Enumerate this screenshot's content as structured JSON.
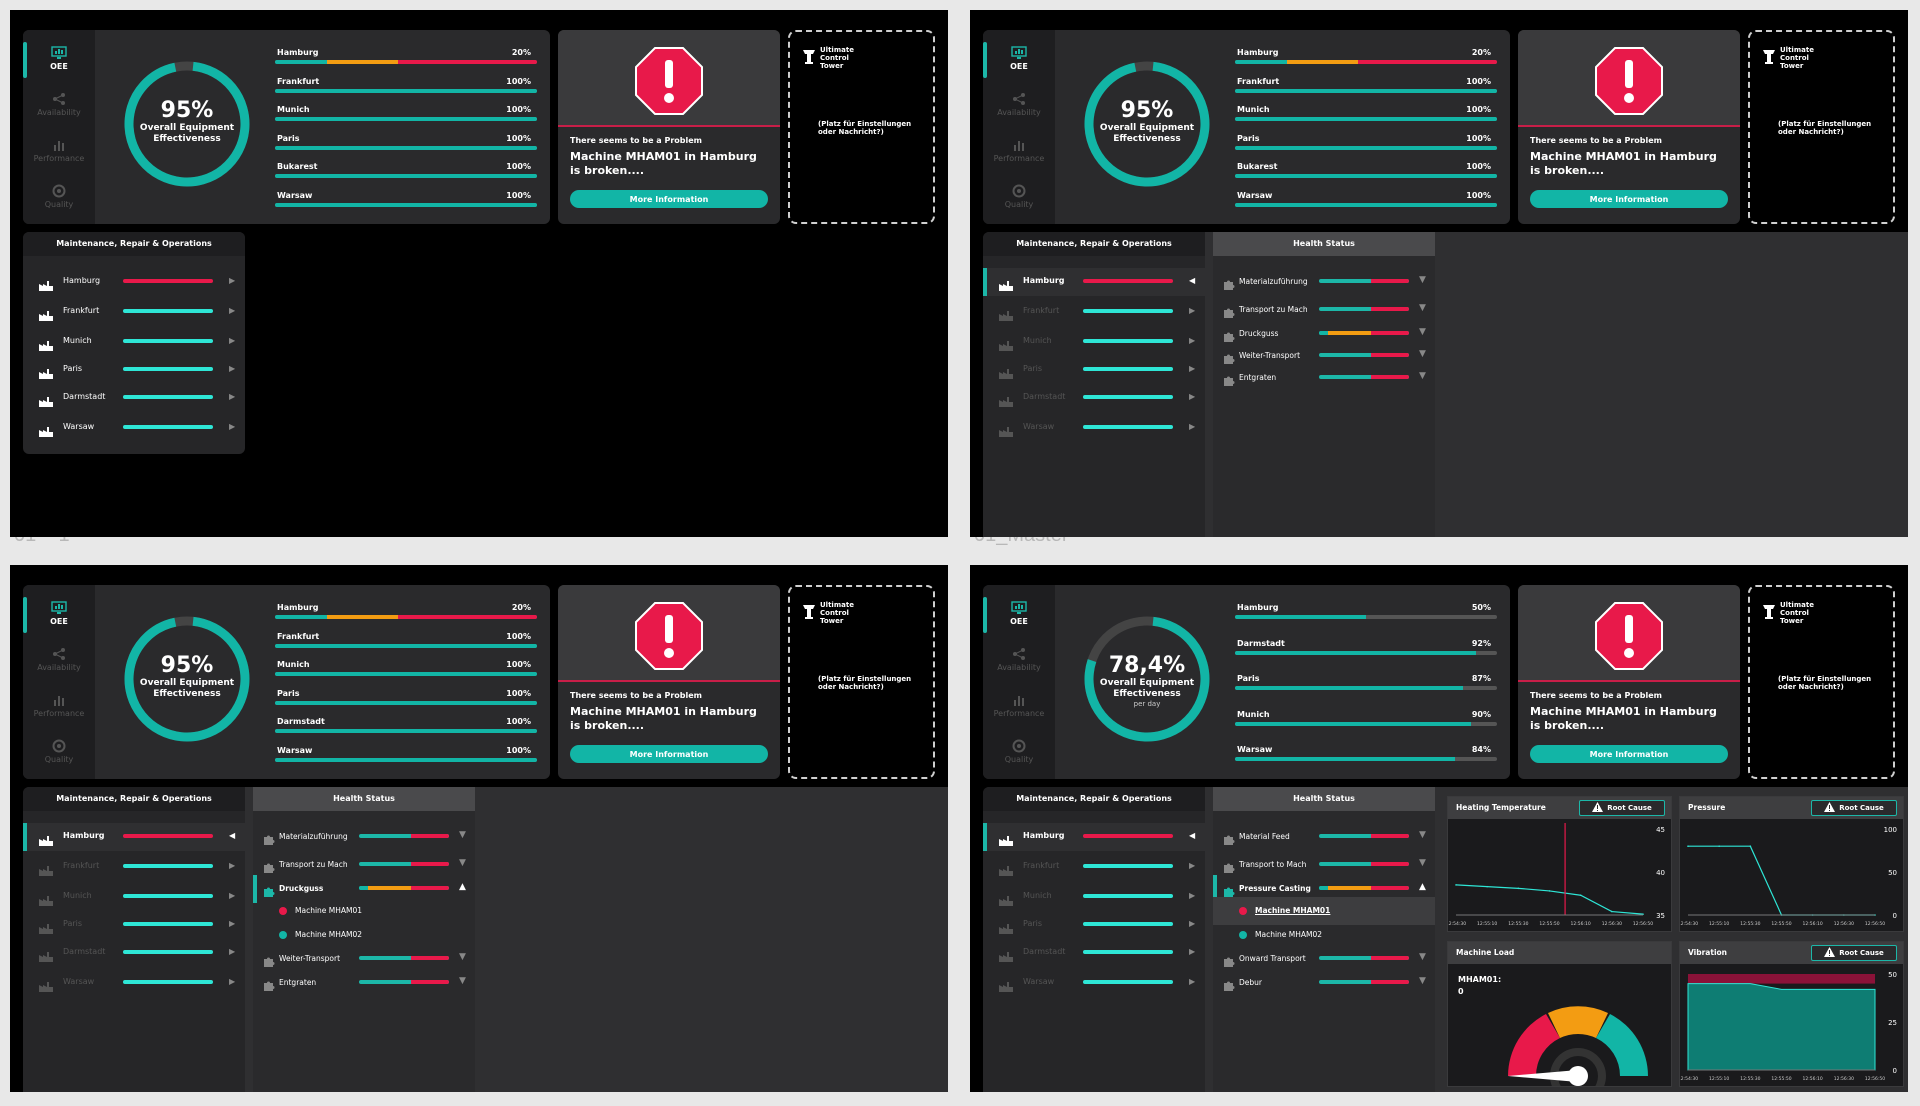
{
  "frames": [
    {
      "label": "01 – 1"
    },
    {
      "label": "01_Master"
    },
    {
      "label": ""
    },
    {
      "label": ""
    }
  ],
  "nav": {
    "items": [
      {
        "label": "OEE",
        "icon": "oee-monitor-icon"
      },
      {
        "label": "Availability",
        "icon": "network-icon"
      },
      {
        "label": "Performance",
        "icon": "bar-chart-icon"
      },
      {
        "label": "Quality",
        "icon": "quality-gauge-icon"
      }
    ]
  },
  "oee_a": {
    "percent": "95%",
    "label_line1": "Overall Equipment",
    "label_line2": "Effectiveness",
    "fraction": 0.95,
    "bars": [
      {
        "name": "Hamburg",
        "value": "20%",
        "segments": [
          {
            "from": 0,
            "to": 0.2,
            "color": "#12b5a6"
          },
          {
            "from": 0.2,
            "to": 0.47,
            "color": "#f39c12"
          },
          {
            "from": 0.47,
            "to": 1,
            "color": "#e8194a"
          }
        ]
      },
      {
        "name": "Frankfurt",
        "value": "100%",
        "segments": [
          {
            "from": 0,
            "to": 1,
            "color": "#12b5a6"
          }
        ]
      },
      {
        "name": "Munich",
        "value": "100%",
        "segments": [
          {
            "from": 0,
            "to": 1,
            "color": "#12b5a6"
          }
        ]
      },
      {
        "name": "Paris",
        "value": "100%",
        "segments": [
          {
            "from": 0,
            "to": 1,
            "color": "#12b5a6"
          }
        ]
      },
      {
        "name": "Bukarest",
        "value": "100%",
        "segments": [
          {
            "from": 0,
            "to": 1,
            "color": "#12b5a6"
          }
        ]
      },
      {
        "name": "Warsaw",
        "value": "100%",
        "segments": [
          {
            "from": 0,
            "to": 1,
            "color": "#12b5a6"
          }
        ]
      }
    ]
  },
  "oee_c": {
    "percent": "95%",
    "label_line1": "Overall Equipment",
    "label_line2": "Effectiveness",
    "fraction": 0.95,
    "bars": [
      {
        "name": "Hamburg",
        "value": "20%",
        "segments": [
          {
            "from": 0,
            "to": 0.2,
            "color": "#12b5a6"
          },
          {
            "from": 0.2,
            "to": 0.47,
            "color": "#f39c12"
          },
          {
            "from": 0.47,
            "to": 1,
            "color": "#e8194a"
          }
        ]
      },
      {
        "name": "Frankfurt",
        "value": "100%",
        "segments": [
          {
            "from": 0,
            "to": 1,
            "color": "#12b5a6"
          }
        ]
      },
      {
        "name": "Munich",
        "value": "100%",
        "segments": [
          {
            "from": 0,
            "to": 1,
            "color": "#12b5a6"
          }
        ]
      },
      {
        "name": "Paris",
        "value": "100%",
        "segments": [
          {
            "from": 0,
            "to": 1,
            "color": "#12b5a6"
          }
        ]
      },
      {
        "name": "Darmstadt",
        "value": "100%",
        "segments": [
          {
            "from": 0,
            "to": 1,
            "color": "#12b5a6"
          }
        ]
      },
      {
        "name": "Warsaw",
        "value": "100%",
        "segments": [
          {
            "from": 0,
            "to": 1,
            "color": "#12b5a6"
          }
        ]
      }
    ]
  },
  "oee_d": {
    "percent": "78,4%",
    "label_line1": "Overall Equipment",
    "label_line2": "Effectiveness",
    "sub": "per day",
    "fraction": 0.784,
    "bars": [
      {
        "name": "Hamburg",
        "value": "50%",
        "segments": [
          {
            "from": 0,
            "to": 0.5,
            "color": "#12b5a6"
          }
        ]
      },
      {
        "name": "Darmstadt",
        "value": "92%",
        "segments": [
          {
            "from": 0,
            "to": 0.92,
            "color": "#12b5a6"
          }
        ]
      },
      {
        "name": "Paris",
        "value": "87%",
        "segments": [
          {
            "from": 0,
            "to": 0.87,
            "color": "#12b5a6"
          }
        ]
      },
      {
        "name": "Munich",
        "value": "90%",
        "segments": [
          {
            "from": 0,
            "to": 0.9,
            "color": "#12b5a6"
          }
        ]
      },
      {
        "name": "Warsaw",
        "value": "84%",
        "segments": [
          {
            "from": 0,
            "to": 0.84,
            "color": "#12b5a6"
          }
        ]
      }
    ]
  },
  "alert": {
    "subtitle": "There seems to be a Problem",
    "message": "Machine MHAM01 in Hamburg is broken....",
    "button": "More Information"
  },
  "tower": {
    "title_line1": "Ultimate",
    "title_line2": "Control",
    "title_line3": "Tower",
    "message": "(Platz für Einstellungen oder Nachricht?)"
  },
  "mro": {
    "title": "Maintenance, Repair & Operations",
    "sites": [
      "Hamburg",
      "Frankfurt",
      "Munich",
      "Paris",
      "Darmstadt",
      "Warsaw"
    ],
    "colors": [
      "#e8194a",
      "#2ee6d6",
      "#2ee6d6",
      "#2ee6d6",
      "#2ee6d6",
      "#2ee6d6"
    ]
  },
  "health_de": {
    "title": "Health Status",
    "items": [
      "Materialzuführung",
      "Transport zu Mach",
      "Druckguss",
      "Weiter-Transport",
      "Entgraten"
    ],
    "machines": [
      "Machine MHAM01",
      "Machine MHAM02"
    ]
  },
  "health_en": {
    "title": "Health Status",
    "items": [
      "Material Feed",
      "Transport to Mach",
      "Pressure Casting",
      "Onward Transport",
      "Debur"
    ],
    "machines": [
      "Machine MHAM01",
      "Machine MHAM02"
    ]
  },
  "charts": {
    "heating": {
      "title": "Heating Temperature",
      "root_cause": "Root Cause"
    },
    "pressure": {
      "title": "Pressure",
      "root_cause": "Root Cause"
    },
    "load": {
      "title": "Machine Load",
      "machine": "MHAM01:",
      "value": "0"
    },
    "vibration": {
      "title": "Vibration",
      "root_cause": "Root Cause"
    }
  },
  "chart_data": [
    {
      "type": "line",
      "title": "Heating Temperature",
      "x": [
        "12:54:30",
        "12:55:10",
        "12:55:30",
        "12:55:50",
        "12:56:10",
        "12:56:30",
        "12:56:50"
      ],
      "yticks": [
        35,
        40,
        45
      ],
      "series": [
        {
          "values": [
            38.5,
            38.3,
            38.1,
            37.8,
            37.3,
            35.4,
            35.1
          ]
        }
      ]
    },
    {
      "type": "line",
      "title": "Pressure",
      "x": [
        "12:54:30",
        "12:55:10",
        "12:55:30",
        "12:55:50",
        "12:56:10",
        "12:56:30",
        "12:56:50"
      ],
      "yticks": [
        0,
        50,
        100
      ],
      "series": [
        {
          "values": [
            80,
            80,
            80,
            0,
            0,
            0,
            0
          ]
        }
      ]
    },
    {
      "type": "area",
      "title": "Vibration",
      "x": [
        "12:54:30",
        "12:55:10",
        "12:55:30",
        "12:55:50",
        "12:56:10",
        "12:56:30",
        "12:56:50"
      ],
      "yticks": [
        0,
        25,
        50
      ],
      "series": [
        {
          "values": [
            45,
            45,
            45,
            42,
            42,
            42,
            42
          ]
        }
      ]
    }
  ],
  "colors": {
    "teal": "#12b5a6",
    "red": "#e8194a",
    "orange": "#f39c12"
  }
}
